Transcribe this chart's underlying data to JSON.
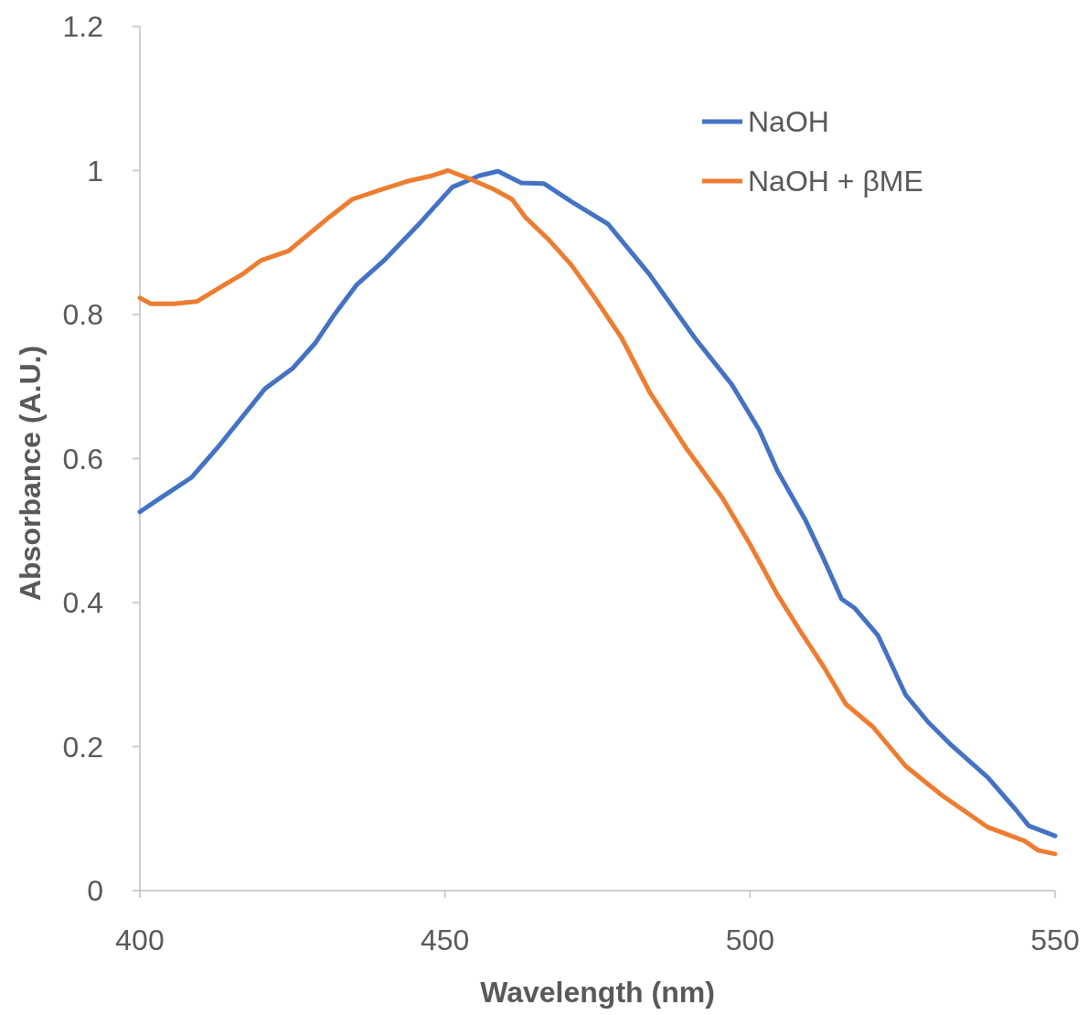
{
  "chart_data": {
    "type": "line",
    "xlabel": "Wavelength (nm)",
    "ylabel": "Absorbance (A.U.)",
    "xlim": [
      400,
      550
    ],
    "xticks": [
      400,
      450,
      500,
      550
    ],
    "ylim": [
      0,
      1.2
    ],
    "yticks": [
      0,
      0.2,
      0.4,
      0.6,
      0.8,
      1,
      1.2
    ],
    "grid": false,
    "legend": "top right",
    "marker": "none",
    "line_style": "solid",
    "series": [
      {
        "name": "NaOH",
        "color": "#4472c4",
        "x": [
          400,
          403.3,
          408.5,
          413,
          420.5,
          425,
          428.8,
          431.8,
          435.5,
          440,
          446,
          451.2,
          455.7,
          458.7,
          462.5,
          466.2,
          470.7,
          476.7,
          483.5,
          491,
          497,
          501.5,
          504.5,
          507.5,
          509,
          512,
          515,
          517.2,
          521,
          525.5,
          529.2,
          533,
          539,
          543.5,
          545.7,
          550
        ],
        "values": [
          0.526,
          0.545,
          0.574,
          0.618,
          0.697,
          0.725,
          0.761,
          0.799,
          0.841,
          0.875,
          0.928,
          0.977,
          0.993,
          0.999,
          0.983,
          0.982,
          0.957,
          0.926,
          0.856,
          0.767,
          0.703,
          0.64,
          0.583,
          0.538,
          0.516,
          0.462,
          0.405,
          0.392,
          0.354,
          0.272,
          0.234,
          0.202,
          0.157,
          0.113,
          0.09,
          0.076
        ]
      },
      {
        "name": "NaOH + βME",
        "color": "#ed7d31",
        "x": [
          400,
          401.8,
          405.5,
          409.3,
          413,
          416.8,
          419.8,
          424.3,
          427.3,
          431,
          434.8,
          439.3,
          443.8,
          447.5,
          450.5,
          454.2,
          458,
          461,
          463.2,
          467,
          470.7,
          474.5,
          479,
          483.5,
          489.5,
          495.5,
          500,
          504.5,
          508.2,
          512,
          515.7,
          520.2,
          525.5,
          531.5,
          539,
          545,
          547.2,
          550
        ],
        "values": [
          0.823,
          0.815,
          0.815,
          0.818,
          0.837,
          0.856,
          0.875,
          0.888,
          0.909,
          0.935,
          0.96,
          0.973,
          0.985,
          0.992,
          1.0,
          0.988,
          0.974,
          0.96,
          0.935,
          0.904,
          0.869,
          0.824,
          0.767,
          0.693,
          0.615,
          0.545,
          0.481,
          0.411,
          0.361,
          0.312,
          0.259,
          0.227,
          0.173,
          0.132,
          0.088,
          0.069,
          0.056,
          0.051
        ]
      }
    ]
  }
}
